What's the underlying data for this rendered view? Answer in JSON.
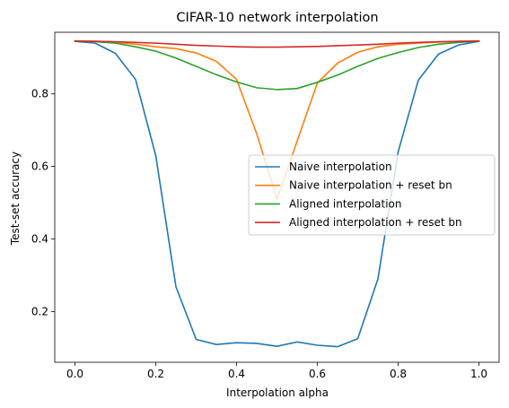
{
  "chart_data": {
    "type": "line",
    "title": "CIFAR-10 network interpolation",
    "xlabel": "Interpolation alpha",
    "ylabel": "Test-set accuracy",
    "xlim": [
      -0.05,
      1.05
    ],
    "ylim": [
      0.06,
      0.97
    ],
    "xticks": [
      0.0,
      0.2,
      0.4,
      0.6,
      0.8,
      1.0
    ],
    "xtick_labels": [
      "0.0",
      "0.2",
      "0.4",
      "0.6",
      "0.8",
      "1.0"
    ],
    "yticks": [
      0.2,
      0.4,
      0.6,
      0.8
    ],
    "ytick_labels": [
      "0.2",
      "0.4",
      "0.6",
      "0.8"
    ],
    "grid": false,
    "legend_position": "center-right",
    "x": [
      0.0,
      0.05,
      0.1,
      0.15,
      0.2,
      0.25,
      0.3,
      0.35,
      0.4,
      0.45,
      0.5,
      0.55,
      0.6,
      0.65,
      0.7,
      0.75,
      0.8,
      0.85,
      0.9,
      0.95,
      1.0
    ],
    "series": [
      {
        "name": "Naive interpolation",
        "color": "#1f77b4",
        "values": [
          0.945,
          0.94,
          0.912,
          0.84,
          0.63,
          0.268,
          0.123,
          0.109,
          0.114,
          0.112,
          0.104,
          0.116,
          0.107,
          0.103,
          0.125,
          0.29,
          0.64,
          0.838,
          0.91,
          0.935,
          0.945
        ]
      },
      {
        "name": "Naive interpolation + reset bn",
        "color": "#ff7f0e",
        "values": [
          0.946,
          0.945,
          0.943,
          0.937,
          0.93,
          0.925,
          0.913,
          0.89,
          0.84,
          0.69,
          0.51,
          0.67,
          0.83,
          0.885,
          0.915,
          0.93,
          0.937,
          0.94,
          0.943,
          0.945,
          0.946
        ]
      },
      {
        "name": "Aligned interpolation",
        "color": "#2ca02c",
        "values": [
          0.946,
          0.944,
          0.94,
          0.93,
          0.918,
          0.899,
          0.876,
          0.853,
          0.833,
          0.817,
          0.812,
          0.815,
          0.832,
          0.852,
          0.876,
          0.898,
          0.914,
          0.928,
          0.937,
          0.942,
          0.946
        ]
      },
      {
        "name": "Aligned interpolation + reset bn",
        "color": "#d62728",
        "values": [
          0.946,
          0.945,
          0.944,
          0.942,
          0.94,
          0.937,
          0.934,
          0.932,
          0.93,
          0.929,
          0.929,
          0.93,
          0.931,
          0.933,
          0.935,
          0.937,
          0.94,
          0.942,
          0.944,
          0.945,
          0.946
        ]
      }
    ]
  }
}
